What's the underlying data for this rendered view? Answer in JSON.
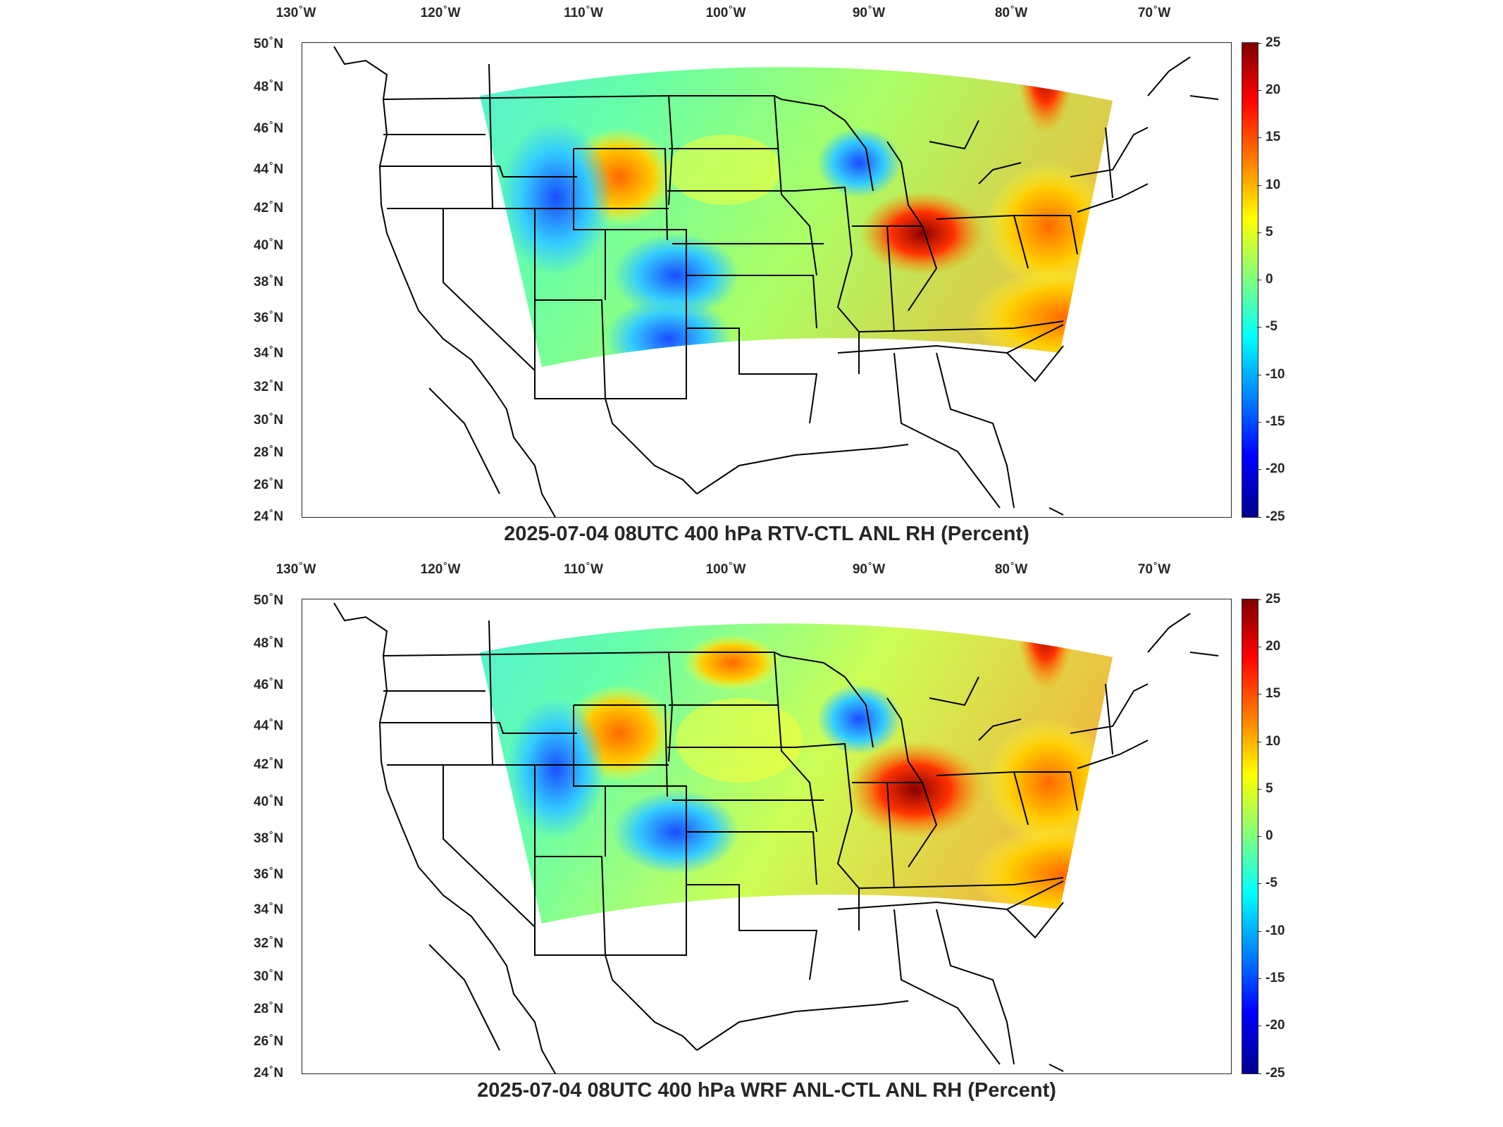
{
  "figure": {
    "colorbar": {
      "ticks": [
        "25",
        "20",
        "15",
        "10",
        "5",
        "0",
        "-5",
        "-10",
        "-15",
        "-20",
        "-25"
      ],
      "colormap": "jet",
      "range": [
        -25,
        25
      ]
    },
    "lon_labels": [
      "130",
      "120",
      "110",
      "100",
      "90",
      "80",
      "70"
    ],
    "lon_suffix": "W",
    "lat_labels": [
      "50",
      "48",
      "46",
      "44",
      "42",
      "40",
      "38",
      "36",
      "34",
      "32",
      "30",
      "28",
      "26",
      "24"
    ],
    "lat_suffix": "N",
    "degree_symbol": "°",
    "panels": [
      {
        "title": "2025-07-04 08UTC 400 hPa RTV-CTL ANL RH (Percent)"
      },
      {
        "title": "2025-07-04 08UTC 400 hPa WRF ANL-CTL ANL RH (Percent)"
      }
    ]
  },
  "colors": {
    "hot": "#b30000",
    "warm": "#ff8c00",
    "mild": "#ffff33",
    "neutral": "#7fff7f",
    "cool": "#33ccff",
    "cold": "#1a4dff"
  }
}
